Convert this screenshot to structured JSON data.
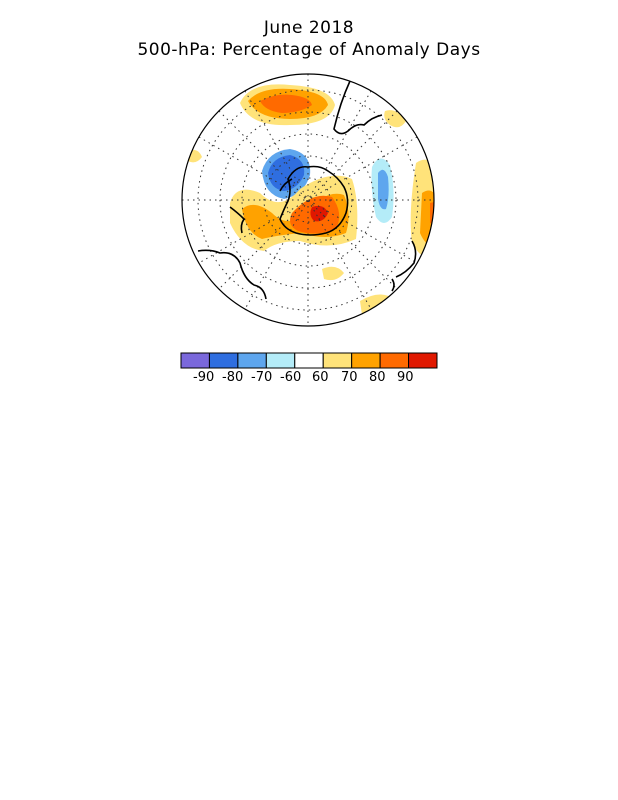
{
  "title": "June 2018",
  "subtitle": "500-hPa: Percentage of Anomaly Days",
  "legend": {
    "labels": [
      "-90",
      "-80",
      "-70",
      "-60",
      "60",
      "70",
      "80",
      "90"
    ],
    "colors": [
      "#7a68db",
      "#2f6ee0",
      "#5ea6ee",
      "#b4ecf8",
      "#ffffff",
      "#ffe37a",
      "#ffa200",
      "#ff6a00",
      "#e01800"
    ]
  },
  "map": {
    "projection": "south-polar-stereographic",
    "coastlines": true,
    "graticule": "dotted",
    "shading_colors": {
      "neg90": "#7a68db",
      "neg80": "#2f6ee0",
      "neg70": "#5ea6ee",
      "neg60": "#b4ecf8",
      "pos60": "#ffe37a",
      "pos70": "#ffa200",
      "pos80": "#ff6a00",
      "pos90": "#e01800"
    }
  }
}
